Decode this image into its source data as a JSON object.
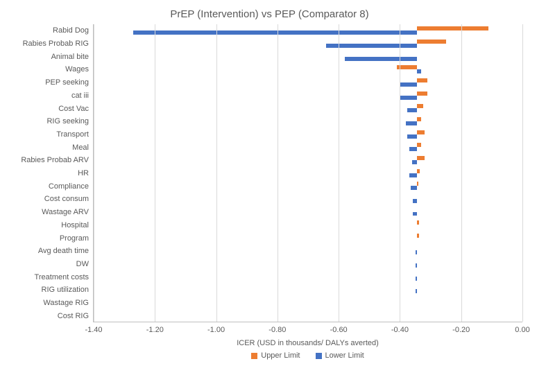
{
  "chart": {
    "type": "tornado-bar",
    "title": "PrEP (Intervention) vs PEP (Comparator 8)",
    "title_fontsize": 15,
    "xaxis_label": "ICER (USD in thousands/ DALYs averted)",
    "label_fontsize": 11,
    "xlim": [
      -1.4,
      0.0
    ],
    "xtick_step": 0.2,
    "xticks": [
      {
        "value": -1.4,
        "label": "-1.40"
      },
      {
        "value": -1.2,
        "label": "-1.20"
      },
      {
        "value": -1.0,
        "label": "-1.00"
      },
      {
        "value": -0.8,
        "label": "-0.80"
      },
      {
        "value": -0.6,
        "label": "-0.60"
      },
      {
        "value": -0.4,
        "label": "-0.40"
      },
      {
        "value": -0.2,
        "label": "-0.20"
      },
      {
        "value": 0.0,
        "label": "0.00"
      }
    ],
    "baseline": -0.345,
    "background_color": "#ffffff",
    "grid_color": "#d9d9d9",
    "axis_color": "#bfbfbf",
    "text_color": "#595959",
    "series": {
      "upper": {
        "label": "Upper Limit",
        "color": "#ed7d31"
      },
      "lower": {
        "label": "Lower Limit",
        "color": "#4472c4"
      }
    },
    "categories": [
      {
        "label": "Rabid Dog",
        "upper": -0.11,
        "lower": -1.27
      },
      {
        "label": "Rabies Probab RIG",
        "upper": -0.25,
        "lower": -0.64
      },
      {
        "label": "Animal bite",
        "upper": -0.345,
        "lower": -0.58
      },
      {
        "label": "Wages",
        "upper": -0.41,
        "lower": -0.33
      },
      {
        "label": "PEP seeking",
        "upper": -0.31,
        "lower": -0.4
      },
      {
        "label": "cat iii",
        "upper": -0.31,
        "lower": -0.4
      },
      {
        "label": "Cost Vac",
        "upper": -0.325,
        "lower": -0.375
      },
      {
        "label": "RIG seeking",
        "upper": -0.33,
        "lower": -0.38
      },
      {
        "label": "Transport",
        "upper": -0.32,
        "lower": -0.375
      },
      {
        "label": "Meal",
        "upper": -0.33,
        "lower": -0.37
      },
      {
        "label": "Rabies Probab ARV",
        "upper": -0.32,
        "lower": -0.36
      },
      {
        "label": "HR",
        "upper": -0.335,
        "lower": -0.37
      },
      {
        "label": "Compliance",
        "upper": -0.34,
        "lower": -0.365
      },
      {
        "label": "Cost consum",
        "upper": -0.345,
        "lower": -0.358
      },
      {
        "label": "Wastage ARV",
        "upper": -0.345,
        "lower": -0.358
      },
      {
        "label": "Hospital",
        "upper": -0.337,
        "lower": -0.345
      },
      {
        "label": "Program",
        "upper": -0.338,
        "lower": -0.345
      },
      {
        "label": "Avg death time",
        "upper": -0.345,
        "lower": -0.35
      },
      {
        "label": "DW",
        "upper": -0.345,
        "lower": -0.35
      },
      {
        "label": "Treatment costs",
        "upper": -0.345,
        "lower": -0.349
      },
      {
        "label": "RIG utilization",
        "upper": -0.345,
        "lower": -0.348
      },
      {
        "label": "Wastage RIG",
        "upper": -0.345,
        "lower": -0.345
      },
      {
        "label": "Cost RIG",
        "upper": -0.345,
        "lower": -0.345
      }
    ]
  }
}
